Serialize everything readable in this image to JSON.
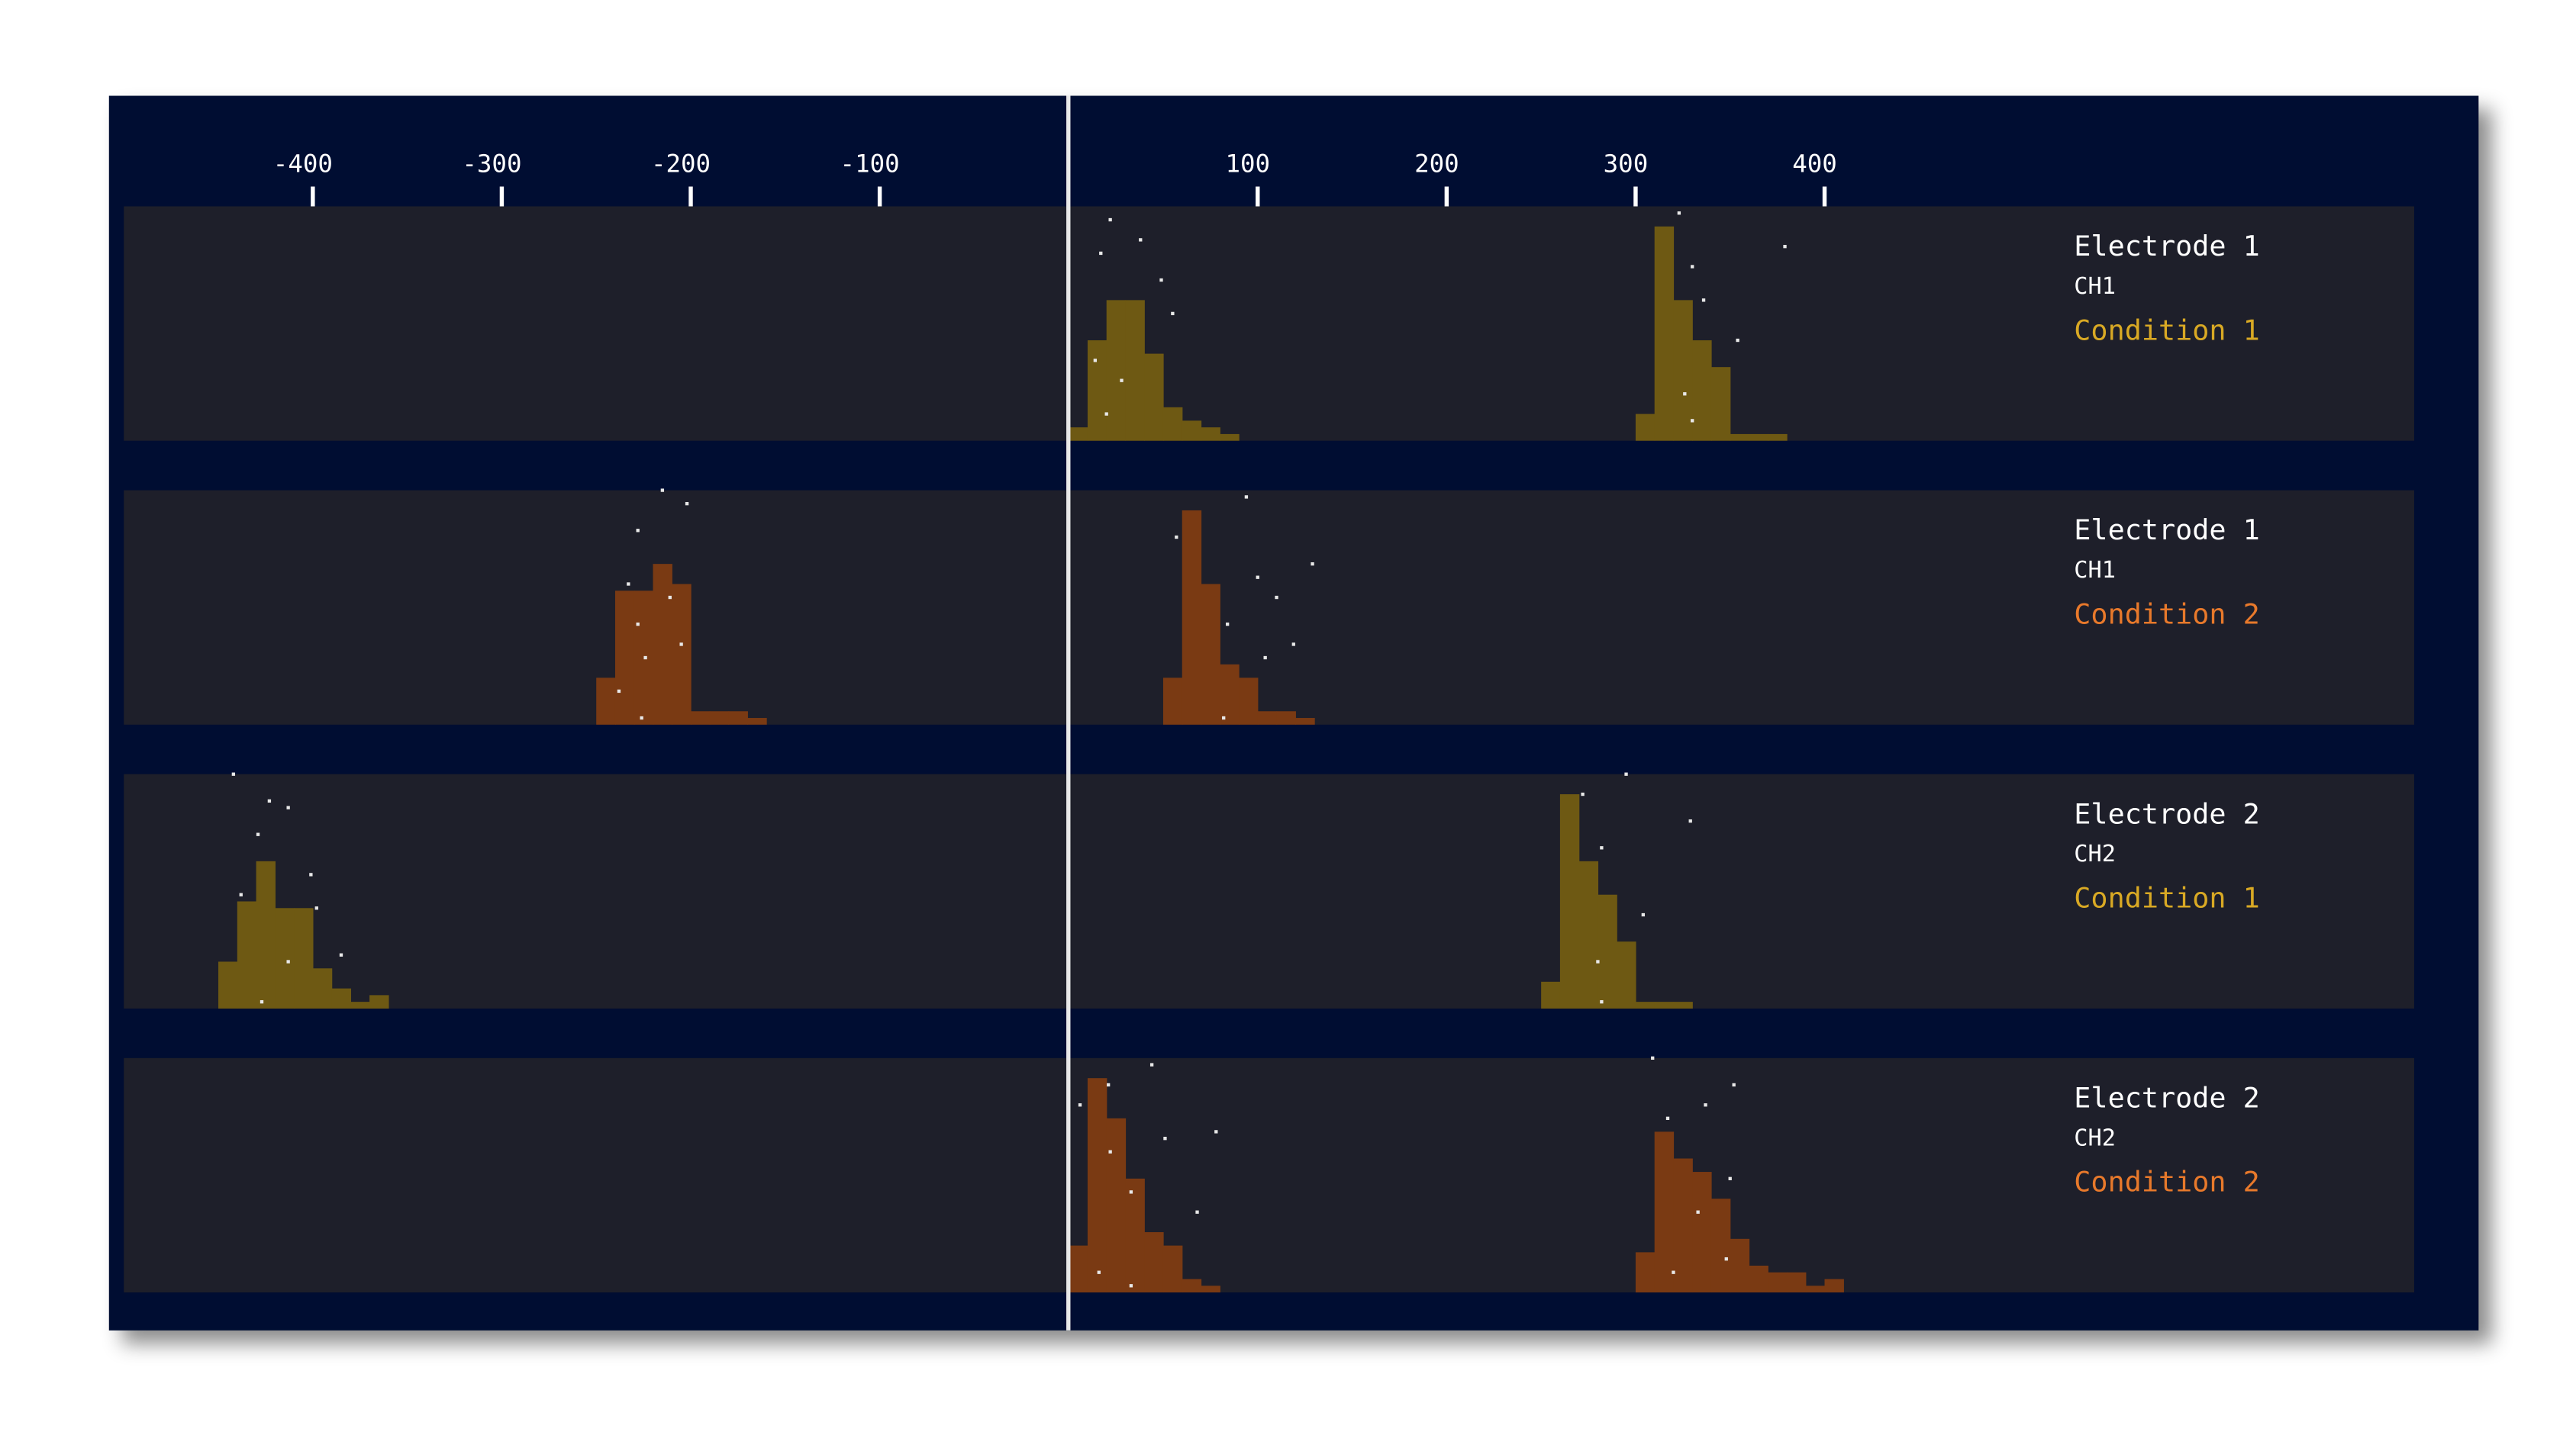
{
  "chart_data": {
    "type": "histogram",
    "xlim": [
      -500,
      712
    ],
    "ylim": [
      0,
      35
    ],
    "xticks": [
      -400,
      -300,
      -200,
      -100,
      100,
      200,
      300,
      400
    ],
    "panels": [
      {
        "electrode": "Electrode 1",
        "channel": "CH1",
        "condition": "Condition 1",
        "color": "#6e5913",
        "label_color": "#d9a924",
        "histograms": [
          {
            "bins": [
              0,
              10,
              20,
              30,
              40,
              50,
              60,
              70,
              80,
              90
            ],
            "counts": [
              2,
              15,
              21,
              21,
              13,
              5,
              3,
              2,
              1
            ]
          },
          {
            "bins": [
              300,
              310,
              320,
              330,
              340,
              350,
              360,
              370,
              380
            ],
            "counts": [
              4,
              32,
              21,
              15,
              11,
              1,
              1,
              1
            ]
          }
        ],
        "points": {
          "x": [
            22,
            38,
            17,
            49,
            55,
            14,
            28,
            20,
            323,
            330,
            336,
            379,
            354,
            326,
            330
          ],
          "y": [
            33,
            30,
            28,
            24,
            19,
            12,
            9,
            4,
            34,
            26,
            21,
            29,
            15,
            7,
            3
          ]
        }
      },
      {
        "electrode": "Electrode 1",
        "channel": "CH1",
        "condition": "Condition 2",
        "color": "#7a3a13",
        "label_color": "#e8792b",
        "histograms": [
          {
            "bins": [
              -250,
              -240,
              -230,
              -220,
              -210,
              -200,
              -190,
              -180,
              -170,
              -160
            ],
            "counts": [
              7,
              20,
              20,
              24,
              21,
              2,
              2,
              2,
              1
            ]
          },
          {
            "bins": [
              50,
              60,
              70,
              80,
              90,
              100,
              110,
              120,
              130
            ],
            "counts": [
              7,
              32,
              21,
              9,
              7,
              2,
              2,
              1
            ]
          }
        ],
        "points": {
          "x": [
            -215,
            -202,
            -228,
            -233,
            -211,
            -228,
            -205,
            -224,
            -238,
            -226,
            94,
            57,
            129,
            100,
            110,
            84,
            119,
            104,
            82
          ],
          "y": [
            35,
            33,
            29,
            21,
            19,
            15,
            12,
            10,
            5,
            1,
            34,
            28,
            24,
            22,
            19,
            15,
            12,
            10,
            1
          ]
        }
      },
      {
        "electrode": "Electrode 2",
        "channel": "CH2",
        "condition": "Condition 1",
        "color": "#6e5913",
        "label_color": "#d9a924",
        "histograms": [
          {
            "bins": [
              -450,
              -440,
              -430,
              -420,
              -410,
              -400,
              -390,
              -380,
              -370,
              -360
            ],
            "counts": [
              7,
              16,
              22,
              15,
              15,
              6,
              3,
              1,
              2
            ]
          },
          {
            "bins": [
              250,
              260,
              270,
              280,
              290,
              300,
              310,
              320,
              330
            ],
            "counts": [
              4,
              32,
              22,
              17,
              10,
              1,
              1,
              1
            ]
          }
        ],
        "points": {
          "x": [
            -442,
            -423,
            -413,
            -429,
            -401,
            -438,
            -398,
            -413,
            -427,
            -385,
            295,
            272,
            329,
            282,
            304,
            280,
            282
          ],
          "y": [
            35,
            31,
            30,
            26,
            20,
            17,
            15,
            7,
            1,
            8,
            35,
            32,
            28,
            24,
            14,
            7,
            1
          ]
        }
      },
      {
        "electrode": "Electrode 2",
        "channel": "CH2",
        "condition": "Condition 2",
        "color": "#7a3a13",
        "label_color": "#e8792b",
        "histograms": [
          {
            "bins": [
              0,
              10,
              20,
              30,
              40,
              50,
              60,
              70,
              80
            ],
            "counts": [
              7,
              32,
              26,
              17,
              9,
              7,
              2,
              1
            ]
          },
          {
            "bins": [
              300,
              310,
              320,
              330,
              340,
              350,
              360,
              370,
              380,
              390,
              400,
              410
            ],
            "counts": [
              6,
              24,
              20,
              18,
              14,
              8,
              4,
              3,
              3,
              1,
              2
            ]
          }
        ],
        "points": {
          "x": [
            44,
            21,
            78,
            6,
            51,
            22,
            33,
            68,
            16,
            33,
            309,
            352,
            337,
            317,
            350,
            333,
            348,
            320
          ],
          "y": [
            34,
            31,
            24,
            28,
            23,
            21,
            15,
            12,
            3,
            1,
            35,
            31,
            28,
            26,
            17,
            12,
            5,
            3
          ]
        }
      }
    ]
  }
}
